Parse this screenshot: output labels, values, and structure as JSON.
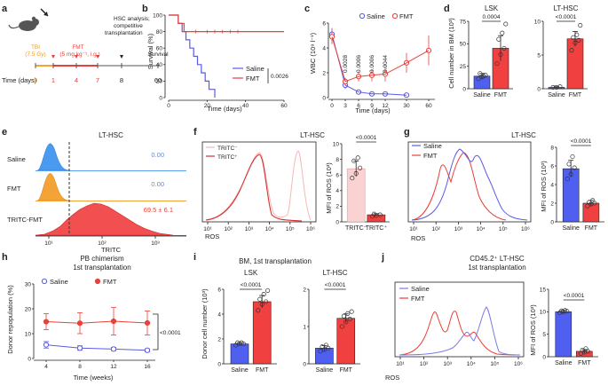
{
  "colors": {
    "saline": "#5a5ae6",
    "fmt": "#e8403a",
    "blue_fill": "#4f5ff0",
    "red_fill": "#f04040",
    "pink": "#f9c8c8",
    "orange": "#f4a436",
    "axis": "#222222"
  },
  "panels": {
    "a": "a",
    "b": "b",
    "c": "c",
    "d": "d",
    "e": "e",
    "f": "f",
    "g": "g",
    "h": "h",
    "i": "i",
    "j": "j"
  },
  "panel_a": {
    "tbi": "TBI",
    "tbi_dose": "(7.5 Gy)",
    "fmt": "FMT",
    "fmt_dose": "(5 mg kg⁻¹, i.g.)",
    "analysis_1": "HSC analysis;",
    "analysis_2": "competitive",
    "analysis_3": "transplantation",
    "survival": "Survival",
    "time_label": "Time (days)",
    "days": [
      "0",
      "1",
      "4",
      "7",
      "8",
      "60"
    ]
  },
  "common": {
    "saline": "Saline",
    "fmt": "FMT",
    "ros": "ROS",
    "tritc": "TRITC",
    "lt_hsc": "LT-HSC",
    "mfi_ros": "MFI of ROS (10³)"
  },
  "chart_data": [
    {
      "id": "b",
      "type": "line",
      "title": "",
      "xlabel": "Time (days)",
      "ylabel": "Survival (%)",
      "xlim": [
        0,
        60
      ],
      "ylim": [
        0,
        100
      ],
      "xticks": [
        "0",
        "20",
        "40",
        "60"
      ],
      "yticks": [
        "0",
        "20",
        "40",
        "60",
        "80",
        "100"
      ],
      "series": [
        {
          "name": "Saline",
          "x": [
            0,
            5,
            5,
            7,
            7,
            9,
            9,
            11,
            11,
            13,
            13,
            15,
            15,
            17,
            17,
            19,
            19,
            21,
            21,
            24,
            24
          ],
          "y": [
            100,
            100,
            90,
            90,
            80,
            80,
            70,
            70,
            60,
            60,
            50,
            50,
            40,
            40,
            30,
            30,
            20,
            20,
            10,
            10,
            0
          ]
        },
        {
          "name": "FMT",
          "x": [
            0,
            5,
            5,
            8,
            8,
            60
          ],
          "y": [
            100,
            100,
            90,
            90,
            80,
            80
          ]
        }
      ],
      "annotation": "0.0026"
    },
    {
      "id": "c",
      "type": "line",
      "xlabel": "Time (days)",
      "ylabel": "WBC (10⁹ l⁻¹)",
      "categories": [
        "0",
        "3",
        "6",
        "9",
        "12",
        "30",
        "60"
      ],
      "ylim": [
        0,
        6
      ],
      "yticks": [
        "0",
        "2",
        "4",
        "6"
      ],
      "series": [
        {
          "name": "Saline",
          "values": [
            5.1,
            1.0,
            0.45,
            0.3,
            0.3,
            0.2,
            null
          ],
          "err": [
            0.5,
            0.3,
            0.15,
            0.1,
            0.1,
            0.1,
            0
          ]
        },
        {
          "name": "FMT",
          "values": [
            4.9,
            1.3,
            1.7,
            1.8,
            1.9,
            2.8,
            3.8
          ],
          "err": [
            0.6,
            0.3,
            0.4,
            0.5,
            0.6,
            0.8,
            1.2
          ]
        }
      ],
      "pvalues": [
        "0.0028",
        "0.0006",
        "0.0006",
        "0.0044"
      ]
    },
    {
      "id": "d1",
      "type": "bar",
      "title": "LSK",
      "ylabel": "Cell number in BM (10³)",
      "categories": [
        "Saline",
        "FMT"
      ],
      "values": [
        14,
        45
      ],
      "err": [
        3,
        14
      ],
      "ylim": [
        0,
        75
      ],
      "yticks": [
        "0",
        "25",
        "50",
        "75"
      ],
      "points": [
        [
          11,
          13,
          15,
          17,
          14
        ],
        [
          28,
          38,
          45,
          55,
          62,
          72
        ]
      ],
      "pvalue": "0.0004"
    },
    {
      "id": "d2",
      "type": "bar",
      "title": "LT-HSC",
      "categories": [
        "Saline",
        "FMT"
      ],
      "values": [
        0.2,
        7.4
      ],
      "err": [
        0.1,
        1.1
      ],
      "ylim": [
        0,
        10
      ],
      "yticks": [
        "0",
        "5",
        "10"
      ],
      "points": [
        [
          0.2,
          0.2,
          0.3
        ],
        [
          5.7,
          6.8,
          7.2,
          7.6,
          8.0,
          9.4
        ]
      ],
      "pvalue": "<0.0001"
    },
    {
      "id": "e",
      "type": "histogram",
      "title": "LT-HSC",
      "xlabel": "TRITC",
      "rows": [
        {
          "name": "Saline",
          "value": "0.00"
        },
        {
          "name": "FMT",
          "value": "0.00"
        },
        {
          "name": "TRITC-FMT",
          "value": "69.5 ± 6.1"
        }
      ],
      "xticks": [
        "10¹",
        "10²",
        "10³"
      ]
    },
    {
      "id": "f",
      "type": "histogram",
      "title": "LT-HSC",
      "xlabel": "ROS",
      "legend": [
        "TRITC⁻",
        "TRITC⁺"
      ],
      "xticks": [
        "10¹",
        "10²",
        "10³",
        "10⁴",
        "10⁵",
        "10⁶"
      ]
    },
    {
      "id": "f_bar",
      "type": "bar",
      "ylabel": "MFI of ROS (10³)",
      "categories": [
        "TRITC⁻",
        "TRITC⁺"
      ],
      "values": [
        6.8,
        0.9
      ],
      "err": [
        1.0,
        0.15
      ],
      "ylim": [
        0,
        10
      ],
      "yticks": [
        "0",
        "2",
        "4",
        "6",
        "8",
        "10"
      ],
      "points": [
        [
          5.6,
          6.2,
          6.9,
          7.8,
          8.2
        ],
        [
          0.7,
          0.8,
          0.9,
          1.0
        ]
      ],
      "pvalue": "<0.0001"
    },
    {
      "id": "g",
      "type": "histogram",
      "title": "LT-HSC",
      "xlabel": "ROS",
      "legend": [
        "Saline",
        "FMT"
      ],
      "xticks": [
        "10¹",
        "10²",
        "10³",
        "10⁴",
        "10⁵",
        "10⁶"
      ]
    },
    {
      "id": "g_bar",
      "type": "bar",
      "ylabel": "MFI of ROS (10³)",
      "categories": [
        "Saline",
        "FMT"
      ],
      "values": [
        5.7,
        2.0
      ],
      "err": [
        0.9,
        0.3
      ],
      "ylim": [
        0,
        8
      ],
      "yticks": [
        "0",
        "2",
        "4",
        "6",
        "8"
      ],
      "points": [
        [
          4.6,
          5.1,
          5.8,
          6.2,
          7.0
        ],
        [
          1.7,
          1.9,
          2.0,
          2.1,
          2.3
        ]
      ],
      "pvalue": "<0.0001"
    },
    {
      "id": "h",
      "type": "line",
      "title": "PB chimerism",
      "subtitle": "1st transplantation",
      "xlabel": "Time (weeks)",
      "ylabel": "Donor repopulation (%)",
      "categories": [
        "4",
        "8",
        "12",
        "16"
      ],
      "ylim": [
        0,
        30
      ],
      "yticks": [
        "0",
        "10",
        "20",
        "30"
      ],
      "series": [
        {
          "name": "Saline",
          "values": [
            5.5,
            4.2,
            3.8,
            3.3
          ],
          "err": [
            1.3,
            0.9,
            0.7,
            0.6
          ]
        },
        {
          "name": "FMT",
          "values": [
            14.8,
            14.2,
            15.0,
            14.3
          ],
          "err": [
            3.2,
            4.2,
            5.5,
            4.8
          ]
        }
      ],
      "pvalue": "<0.0001"
    },
    {
      "id": "i1",
      "type": "bar",
      "title": "LSK",
      "header": "BM, 1st transplantation",
      "ylabel": "Donor cell number (10³)",
      "categories": [
        "Saline",
        "FMT"
      ],
      "values": [
        1.6,
        5.0
      ],
      "err": [
        0.1,
        0.5
      ],
      "ylim": [
        0,
        6
      ],
      "yticks": [
        "0",
        "2",
        "4",
        "6"
      ],
      "points": [
        [
          1.5,
          1.6,
          1.6,
          1.7,
          1.7
        ],
        [
          4.3,
          4.8,
          5.0,
          5.2,
          5.6,
          5.9
        ]
      ],
      "pvalue": "<0.0001"
    },
    {
      "id": "i2",
      "type": "bar",
      "title": "LT-HSC",
      "categories": [
        "Saline",
        "FMT"
      ],
      "values": [
        0.42,
        1.22
      ],
      "err": [
        0.07,
        0.12
      ],
      "ylim": [
        0,
        2
      ],
      "yticks": [
        "0",
        "1",
        "2"
      ],
      "points": [
        [
          0.34,
          0.38,
          0.42,
          0.46,
          0.5
        ],
        [
          1.0,
          1.12,
          1.2,
          1.28,
          1.35,
          1.4
        ]
      ],
      "pvalue": "<0.0001"
    },
    {
      "id": "j",
      "type": "histogram",
      "title": "CD45.2⁺ LT-HSC",
      "subtitle": "1st transplantation",
      "xlabel": "ROS",
      "legend": [
        "Saline",
        "FMT"
      ],
      "xticks": [
        "10¹",
        "10²",
        "10³",
        "10⁴",
        "10⁵",
        "10⁶"
      ]
    },
    {
      "id": "j_bar",
      "type": "bar",
      "ylabel": "MFI of ROS (10³)",
      "categories": [
        "Saline",
        "FMT"
      ],
      "values": [
        10.0,
        1.2
      ],
      "err": [
        0.3,
        0.4
      ],
      "ylim": [
        0,
        15
      ],
      "yticks": [
        "0",
        "5",
        "10",
        "15"
      ],
      "points": [
        [
          9.8,
          10.0,
          10.1,
          10.2,
          10.3
        ],
        [
          0.7,
          1.0,
          1.2,
          1.5,
          1.8
        ]
      ],
      "pvalue": "<0.0001"
    }
  ]
}
